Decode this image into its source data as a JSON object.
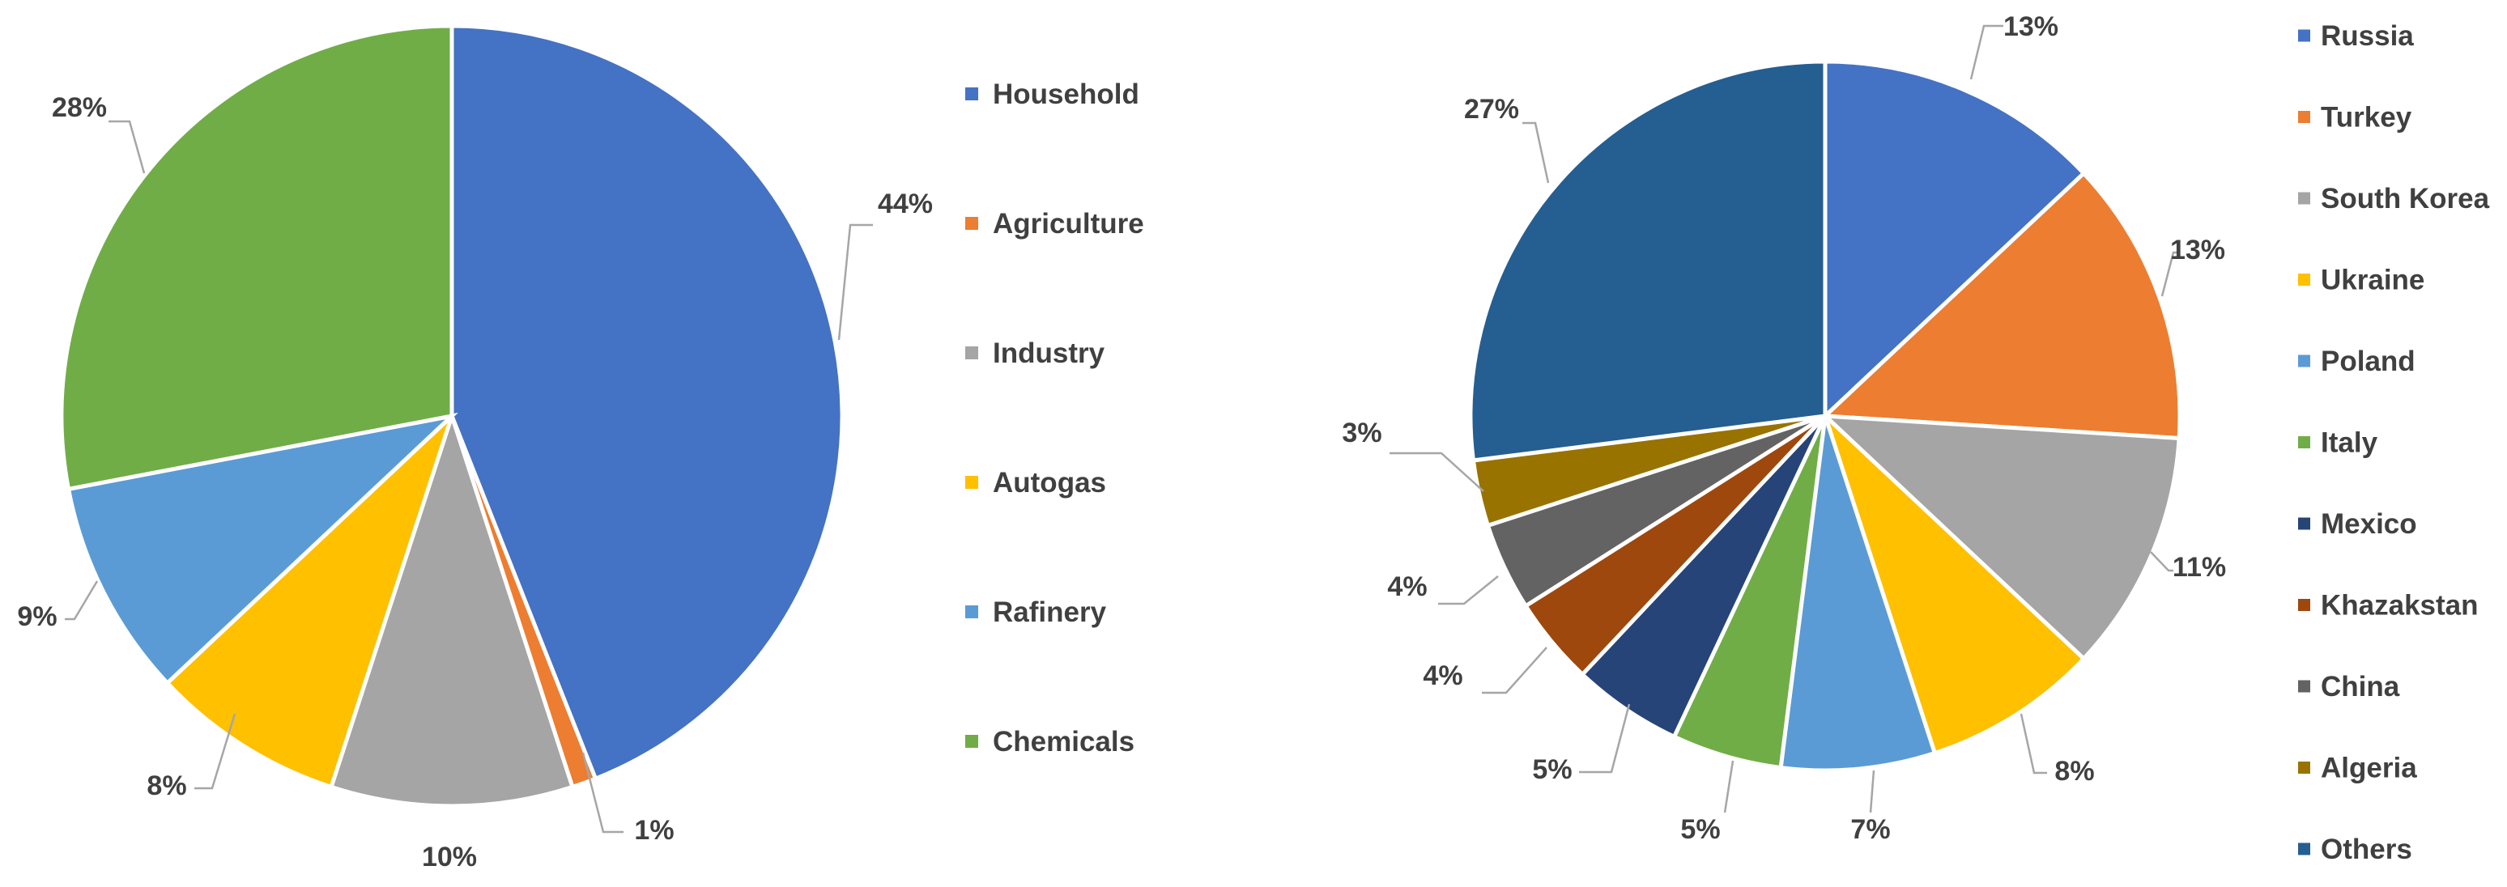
{
  "chart_data": [
    {
      "type": "pie",
      "categories": [
        "Household",
        "Agriculture",
        "Industry",
        "Autogas",
        "Rafinery",
        "Chemicals"
      ],
      "values": [
        44,
        1,
        10,
        8,
        9,
        28
      ],
      "labels": [
        "44%",
        "1%",
        "10%",
        "8%",
        "9%",
        "28%"
      ],
      "colors": [
        "#4472C4",
        "#ED7D31",
        "#A5A5A5",
        "#FFC000",
        "#5B9BD5",
        "#70AD47"
      ],
      "legend_position": "right"
    },
    {
      "type": "pie",
      "categories": [
        "Russia",
        "Turkey",
        "South Korea",
        "Ukraine",
        "Poland",
        "Italy",
        "Mexico",
        "Khazakstan",
        "China",
        "Algeria",
        "Others"
      ],
      "values": [
        13,
        13,
        11,
        8,
        7,
        5,
        5,
        4,
        4,
        3,
        27
      ],
      "labels": [
        "13%",
        "13%",
        "11%",
        "8%",
        "7%",
        "5%",
        "5%",
        "4%",
        "4%",
        "3%",
        "27%"
      ],
      "colors": [
        "#4472C4",
        "#ED7D31",
        "#A5A5A5",
        "#FFC000",
        "#5B9BD5",
        "#70AD47",
        "#264478",
        "#9E480E",
        "#636363",
        "#997300",
        "#255E91"
      ],
      "legend_position": "right"
    }
  ]
}
